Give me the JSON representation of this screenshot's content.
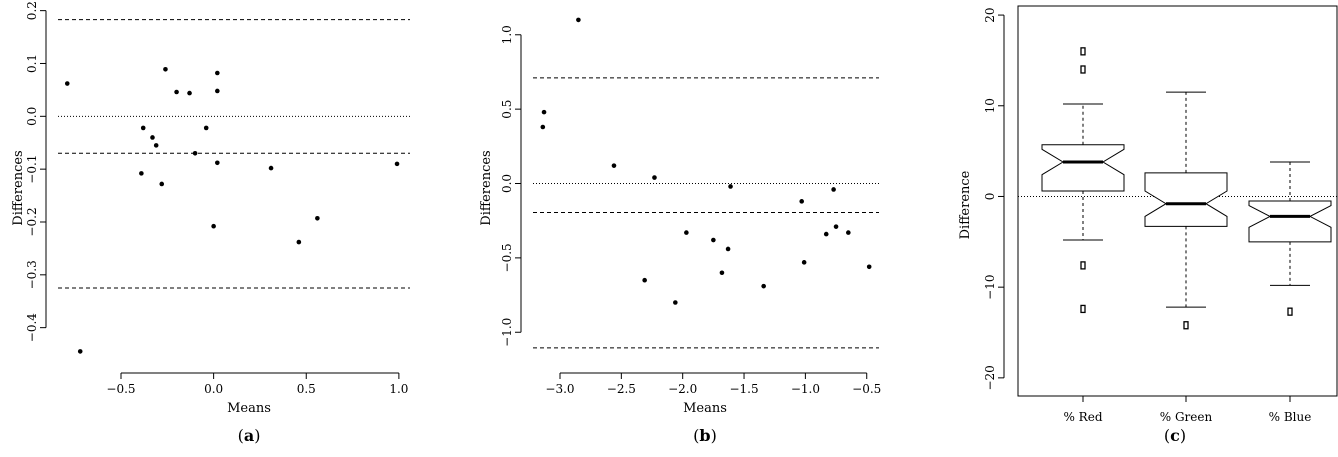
{
  "chart_data": [
    {
      "id": "a",
      "type": "scatter",
      "caption": "a",
      "xlabel": "Means",
      "ylabel": "Differences",
      "xlim": [
        -0.84,
        1.06
      ],
      "ylim": [
        -0.465,
        0.205
      ],
      "xticks": [
        -0.5,
        0.0,
        0.5,
        1.0
      ],
      "xtick_labels": [
        "−0.5",
        "0.0",
        "0.5",
        "1.0"
      ],
      "yticks": [
        -0.4,
        -0.3,
        -0.2,
        -0.1,
        0.0,
        0.1,
        0.2
      ],
      "ytick_labels": [
        "−0.4",
        "−0.3",
        "−0.2",
        "−0.1",
        "0.0",
        "0.1",
        "0.2"
      ],
      "reference_lines": [
        {
          "y": 0.183,
          "style": "dashed"
        },
        {
          "y": 0.0,
          "style": "dotted"
        },
        {
          "y": -0.07,
          "style": "dashed"
        },
        {
          "y": -0.325,
          "style": "dashed"
        }
      ],
      "points": [
        {
          "x": -0.79,
          "y": 0.062
        },
        {
          "x": -0.26,
          "y": 0.089
        },
        {
          "x": -0.2,
          "y": 0.046
        },
        {
          "x": -0.13,
          "y": 0.044
        },
        {
          "x": 0.02,
          "y": 0.082
        },
        {
          "x": 0.02,
          "y": 0.048
        },
        {
          "x": -0.38,
          "y": -0.022
        },
        {
          "x": -0.33,
          "y": -0.04
        },
        {
          "x": -0.31,
          "y": -0.055
        },
        {
          "x": -0.04,
          "y": -0.022
        },
        {
          "x": -0.1,
          "y": -0.07
        },
        {
          "x": 0.02,
          "y": -0.088
        },
        {
          "x": -0.39,
          "y": -0.108
        },
        {
          "x": -0.28,
          "y": -0.128
        },
        {
          "x": 0.31,
          "y": -0.098
        },
        {
          "x": 0.99,
          "y": -0.09
        },
        {
          "x": 0.0,
          "y": -0.208
        },
        {
          "x": 0.56,
          "y": -0.193
        },
        {
          "x": 0.46,
          "y": -0.238
        },
        {
          "x": -0.72,
          "y": -0.445
        }
      ]
    },
    {
      "id": "b",
      "type": "scatter",
      "caption": "b",
      "xlabel": "Means",
      "ylabel": "Differences",
      "xlim": [
        -3.22,
        -0.4
      ],
      "ylim": [
        -1.2,
        1.18
      ],
      "xticks": [
        -3.0,
        -2.5,
        -2.0,
        -1.5,
        -1.0,
        -0.5
      ],
      "xtick_labels": [
        "−3.0",
        "−2.5",
        "−2.0",
        "−1.5",
        "−1.0",
        "−0.5"
      ],
      "yticks": [
        -1.0,
        -0.5,
        0.0,
        0.5,
        1.0
      ],
      "ytick_labels": [
        "−1.0",
        "−0.5",
        "0.0",
        "0.5",
        "1.0"
      ],
      "reference_lines": [
        {
          "y": 0.71,
          "style": "dashed"
        },
        {
          "y": 0.0,
          "style": "dotted"
        },
        {
          "y": -0.195,
          "style": "dashed"
        },
        {
          "y": -1.105,
          "style": "dashed"
        }
      ],
      "points": [
        {
          "x": -2.85,
          "y": 1.1
        },
        {
          "x": -3.13,
          "y": 0.48
        },
        {
          "x": -3.14,
          "y": 0.38
        },
        {
          "x": -2.56,
          "y": 0.12
        },
        {
          "x": -2.23,
          "y": 0.04
        },
        {
          "x": -1.61,
          "y": -0.02
        },
        {
          "x": -0.77,
          "y": -0.04
        },
        {
          "x": -1.03,
          "y": -0.12
        },
        {
          "x": -1.97,
          "y": -0.33
        },
        {
          "x": -1.75,
          "y": -0.38
        },
        {
          "x": -1.63,
          "y": -0.44
        },
        {
          "x": -0.75,
          "y": -0.29
        },
        {
          "x": -0.83,
          "y": -0.34
        },
        {
          "x": -0.65,
          "y": -0.33
        },
        {
          "x": -1.01,
          "y": -0.53
        },
        {
          "x": -1.68,
          "y": -0.6
        },
        {
          "x": -2.31,
          "y": -0.65
        },
        {
          "x": -1.34,
          "y": -0.69
        },
        {
          "x": -0.48,
          "y": -0.56
        },
        {
          "x": -2.06,
          "y": -0.8
        }
      ]
    },
    {
      "id": "c",
      "type": "box",
      "caption": "c",
      "xlabel": "",
      "ylabel": "Difference",
      "ylim": [
        -22,
        21
      ],
      "yticks": [
        -20,
        -10,
        0,
        10,
        20
      ],
      "ytick_labels": [
        "−20",
        "−10",
        "0",
        "10",
        "20"
      ],
      "reference_lines": [
        {
          "y": 0,
          "style": "dotted"
        }
      ],
      "categories": [
        "% Red",
        "% Green",
        "% Blue"
      ],
      "boxes": [
        {
          "label": "% Red",
          "q1": 0.6,
          "median": 3.8,
          "q3": 5.7,
          "whisker_low": -4.8,
          "whisker_high": 10.2,
          "notch_low": 2.4,
          "notch_high": 5.2,
          "outliers": [
            16.0,
            14.0,
            -7.6,
            -12.4
          ]
        },
        {
          "label": "% Green",
          "q1": -3.3,
          "median": -0.8,
          "q3": 2.6,
          "whisker_low": -12.2,
          "whisker_high": 11.5,
          "notch_low": -2.2,
          "notch_high": 0.6,
          "outliers": [
            -14.2
          ]
        },
        {
          "label": "% Blue",
          "q1": -5.0,
          "median": -2.2,
          "q3": -0.5,
          "whisker_low": -9.8,
          "whisker_high": 3.8,
          "notch_low": -3.4,
          "notch_high": -1.0,
          "outliers": [
            -12.7
          ]
        }
      ]
    }
  ]
}
